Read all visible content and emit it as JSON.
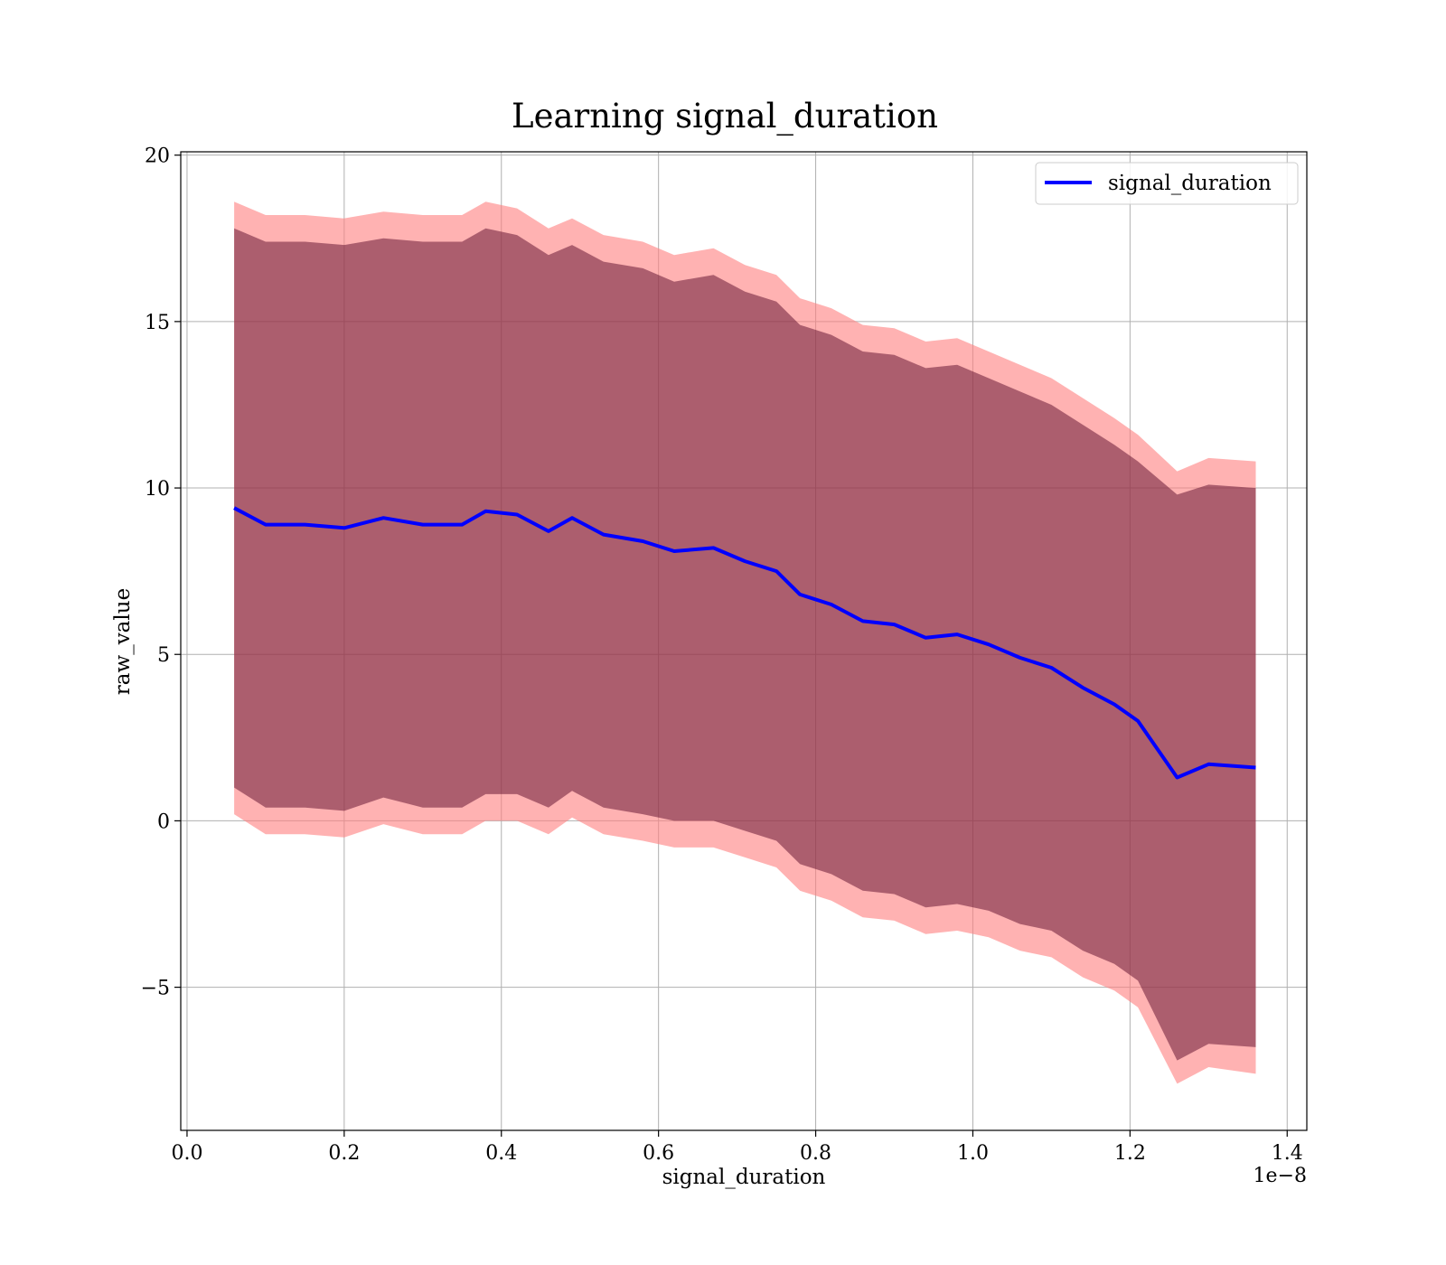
{
  "chart_data": {
    "type": "area",
    "title": "Learning signal_duration",
    "xlabel": "signal_duration",
    "ylabel": "raw_value",
    "x_offset_label": "1e−8",
    "xlim": [
      -0.008,
      1.425
    ],
    "ylim": [
      -9.3,
      20.1
    ],
    "x_ticks": [
      0.0,
      0.2,
      0.4,
      0.6,
      0.8,
      1.0,
      1.2,
      1.4
    ],
    "x_tick_labels": [
      "0.0",
      "0.2",
      "0.4",
      "0.6",
      "0.8",
      "1.0",
      "1.2",
      "1.4"
    ],
    "y_ticks": [
      -5,
      0,
      5,
      10,
      15,
      20
    ],
    "y_tick_labels": [
      "−5",
      "0",
      "5",
      "10",
      "15",
      "20"
    ],
    "grid": true,
    "legend": {
      "position": "top-right",
      "entries": [
        "signal_duration"
      ]
    },
    "colors": {
      "line": "#0000ff",
      "outer_band": "#ff7f7f",
      "inner_band": "#5a0a2a"
    },
    "x": [
      0.06,
      0.1,
      0.15,
      0.2,
      0.25,
      0.3,
      0.35,
      0.38,
      0.42,
      0.46,
      0.49,
      0.53,
      0.58,
      0.62,
      0.67,
      0.71,
      0.75,
      0.78,
      0.82,
      0.86,
      0.9,
      0.94,
      0.98,
      1.02,
      1.06,
      1.1,
      1.14,
      1.18,
      1.21,
      1.26,
      1.3,
      1.36
    ],
    "series": [
      {
        "name": "signal_duration",
        "mean": [
          9.4,
          8.9,
          8.9,
          8.8,
          9.1,
          8.9,
          8.9,
          9.3,
          9.2,
          8.7,
          9.1,
          8.6,
          8.4,
          8.1,
          8.2,
          7.8,
          7.5,
          6.8,
          6.5,
          6.0,
          5.9,
          5.5,
          5.6,
          5.3,
          4.9,
          4.6,
          4.0,
          3.5,
          3.0,
          1.3,
          1.7,
          1.6
        ],
        "std1_upper": [
          17.8,
          17.4,
          17.4,
          17.3,
          17.5,
          17.4,
          17.4,
          17.8,
          17.6,
          17.0,
          17.3,
          16.8,
          16.6,
          16.2,
          16.4,
          15.9,
          15.6,
          14.9,
          14.6,
          14.1,
          14.0,
          13.6,
          13.7,
          13.3,
          12.9,
          12.5,
          11.9,
          11.3,
          10.8,
          9.8,
          10.1,
          10.0
        ],
        "std1_lower": [
          1.0,
          0.4,
          0.4,
          0.3,
          0.7,
          0.4,
          0.4,
          0.8,
          0.8,
          0.4,
          0.9,
          0.4,
          0.2,
          0.0,
          0.0,
          -0.3,
          -0.6,
          -1.3,
          -1.6,
          -2.1,
          -2.2,
          -2.6,
          -2.5,
          -2.7,
          -3.1,
          -3.3,
          -3.9,
          -4.3,
          -4.8,
          -7.2,
          -6.7,
          -6.8
        ],
        "std2_upper": [
          18.6,
          18.2,
          18.2,
          18.1,
          18.3,
          18.2,
          18.2,
          18.6,
          18.4,
          17.8,
          18.1,
          17.6,
          17.4,
          17.0,
          17.2,
          16.7,
          16.4,
          15.7,
          15.4,
          14.9,
          14.8,
          14.4,
          14.5,
          14.1,
          13.7,
          13.3,
          12.7,
          12.1,
          11.6,
          10.5,
          10.9,
          10.8
        ],
        "std2_lower": [
          0.2,
          -0.4,
          -0.4,
          -0.5,
          -0.1,
          -0.4,
          -0.4,
          0.0,
          0.0,
          -0.4,
          0.1,
          -0.4,
          -0.6,
          -0.8,
          -0.8,
          -1.1,
          -1.4,
          -2.1,
          -2.4,
          -2.9,
          -3.0,
          -3.4,
          -3.3,
          -3.5,
          -3.9,
          -4.1,
          -4.7,
          -5.1,
          -5.6,
          -7.9,
          -7.4,
          -7.6
        ]
      }
    ]
  }
}
